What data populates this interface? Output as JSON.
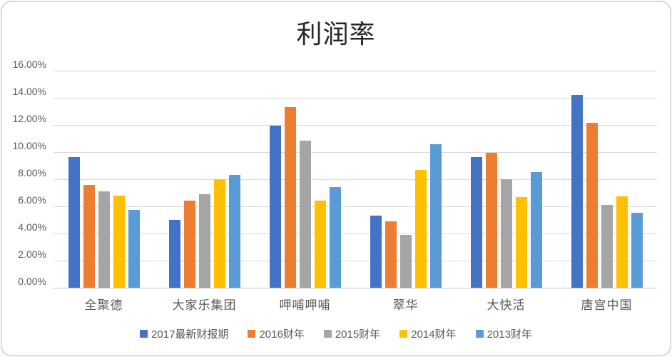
{
  "chart_data": {
    "type": "bar",
    "title": "利润率",
    "categories": [
      "全聚德",
      "大家乐集团",
      "呷哺呷哺",
      "翠华",
      "大快活",
      "唐宫中国"
    ],
    "series": [
      {
        "name": "2017最新财报期",
        "color": "#4472C4",
        "values": [
          9.65,
          5.0,
          11.95,
          5.3,
          9.65,
          14.2
        ]
      },
      {
        "name": "2016财年",
        "color": "#ED7D31",
        "values": [
          7.6,
          6.4,
          13.3,
          4.9,
          9.95,
          12.15
        ]
      },
      {
        "name": "2015财年",
        "color": "#A5A5A5",
        "values": [
          7.1,
          6.9,
          10.85,
          3.9,
          8.0,
          6.1
        ]
      },
      {
        "name": "2014财年",
        "color": "#FFC000",
        "values": [
          6.8,
          8.0,
          6.4,
          8.7,
          6.7,
          6.75
        ]
      },
      {
        "name": "2013财年",
        "color": "#5B9BD5",
        "values": [
          5.75,
          8.3,
          7.4,
          10.6,
          8.55,
          5.55
        ]
      }
    ],
    "xlabel": "",
    "ylabel": "",
    "ylim": [
      0,
      16
    ],
    "ytick_step": 2,
    "ytick_labels": [
      "0.00%",
      "2.00%",
      "4.00%",
      "6.00%",
      "8.00%",
      "10.00%",
      "12.00%",
      "14.00%",
      "16.00%"
    ],
    "grid": true,
    "legend_position": "bottom",
    "background_color": "#FFFFFF",
    "border_color": "#D9D9D9",
    "label_color": "#595959"
  }
}
